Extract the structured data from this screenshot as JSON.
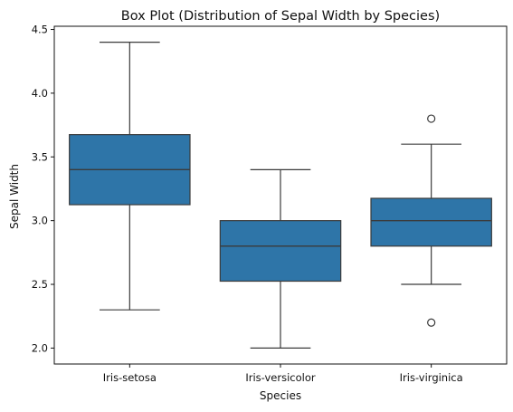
{
  "chart_data": {
    "type": "box",
    "title": "Box Plot (Distribution of Sepal Width by Species)",
    "xlabel": "Species",
    "ylabel": "Sepal Width",
    "ylim": [
      1.875,
      4.525
    ],
    "yticks": [
      2.0,
      2.5,
      3.0,
      3.5,
      4.0,
      4.5
    ],
    "ytick_labels": [
      "2.0",
      "2.5",
      "3.0",
      "3.5",
      "4.0",
      "4.5"
    ],
    "grid": false,
    "box_color": "#2e75a8",
    "line_color": "#3b3b3b",
    "categories": [
      "Iris-setosa",
      "Iris-versicolor",
      "Iris-virginica"
    ],
    "boxes": [
      {
        "category": "Iris-setosa",
        "whisker_low": 2.3,
        "q1": 3.125,
        "median": 3.4,
        "q3": 3.675,
        "whisker_high": 4.4,
        "outliers": []
      },
      {
        "category": "Iris-versicolor",
        "whisker_low": 2.0,
        "q1": 2.525,
        "median": 2.8,
        "q3": 3.0,
        "whisker_high": 3.4,
        "outliers": []
      },
      {
        "category": "Iris-virginica",
        "whisker_low": 2.5,
        "q1": 2.8,
        "median": 3.0,
        "q3": 3.175,
        "whisker_high": 3.6,
        "outliers": [
          3.8,
          2.2
        ]
      }
    ]
  }
}
